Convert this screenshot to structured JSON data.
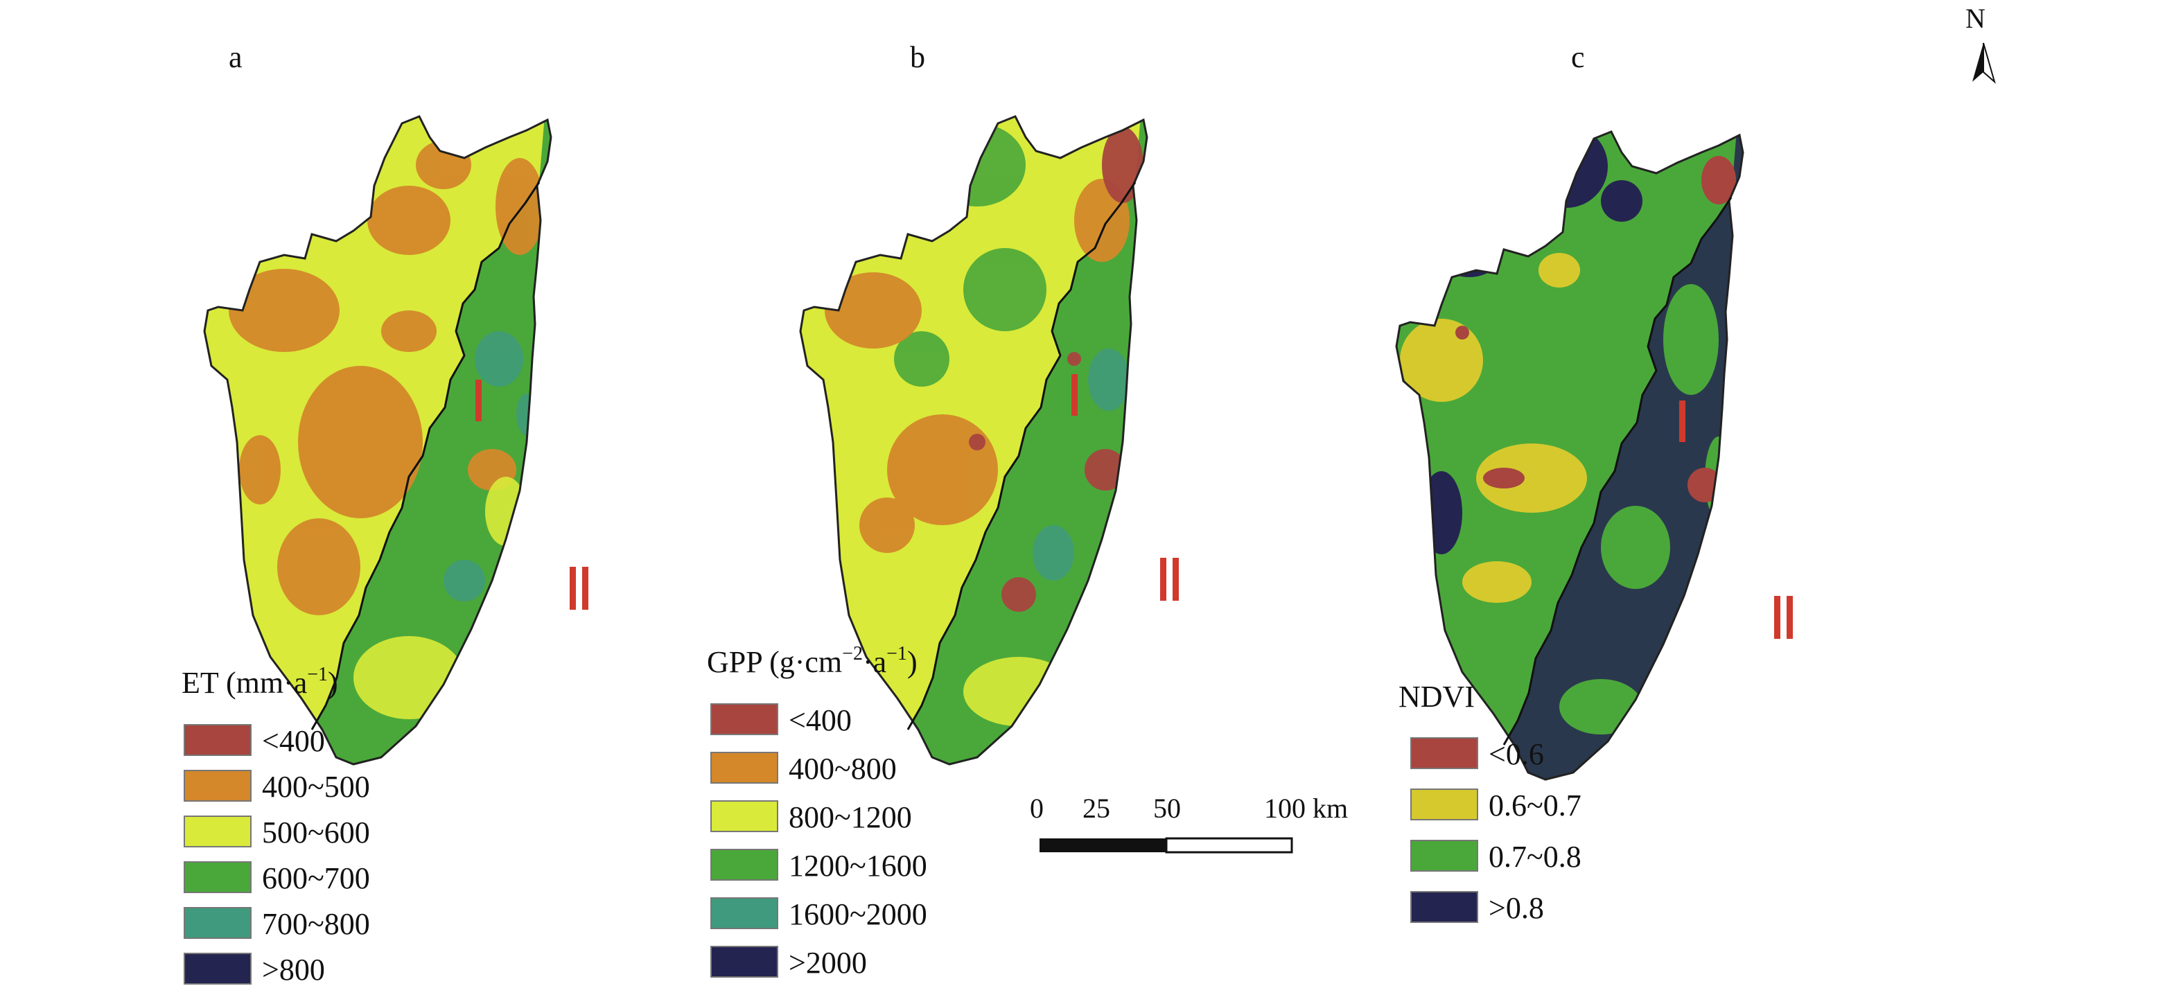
{
  "panels": [
    {
      "letter": "a",
      "roman_1": "Ⅰ",
      "roman_2": "Ⅱ"
    },
    {
      "letter": "b",
      "roman_1": "Ⅰ",
      "roman_2": "Ⅱ"
    },
    {
      "letter": "c",
      "roman_1": "Ⅰ",
      "roman_2": "Ⅱ"
    }
  ],
  "north": "N",
  "legends": {
    "et": {
      "title": "ET (mm·a",
      "title_sup": "−1",
      "title_end": ")",
      "items": [
        {
          "label": "<400",
          "color": "#a8453f"
        },
        {
          "label": "400~500",
          "color": "#d4882a"
        },
        {
          "label": "500~600",
          "color": "#d9ea3a"
        },
        {
          "label": "600~700",
          "color": "#4aa83a"
        },
        {
          "label": "700~800",
          "color": "#3f9a7e"
        },
        {
          "label": ">800",
          "color": "#242451"
        }
      ]
    },
    "gpp": {
      "title": "GPP (g·cm",
      "title_sup1": "−2",
      "title_mid": "·a",
      "title_sup2": "−1",
      "title_end": ")",
      "items": [
        {
          "label": "<400",
          "color": "#a8453f"
        },
        {
          "label": "400~800",
          "color": "#d4882a"
        },
        {
          "label": "800~1200",
          "color": "#d9ea3a"
        },
        {
          "label": "1200~1600",
          "color": "#4aa83a"
        },
        {
          "label": "1600~2000",
          "color": "#3f9a7e"
        },
        {
          "label": ">2000",
          "color": "#242451"
        }
      ]
    },
    "ndvi": {
      "title": "NDVI",
      "items": [
        {
          "label": "<0.6",
          "color": "#a8453f"
        },
        {
          "label": "0.6~0.7",
          "color": "#d6c92e"
        },
        {
          "label": "0.7~0.8",
          "color": "#4aa83a"
        },
        {
          "label": ">0.8",
          "color": "#242451"
        }
      ]
    }
  },
  "scale_bar": {
    "ticks": [
      "0",
      "25",
      "50",
      "100 km"
    ]
  },
  "colors": {
    "red": "#a8453f",
    "orange": "#d4882a",
    "yellow": "#d9ea3a",
    "green": "#4aa83a",
    "teal": "#3f9a7e",
    "navy": "#242451",
    "ndvi_yellow": "#d6c92e",
    "zone_label": "#d03a2c"
  }
}
